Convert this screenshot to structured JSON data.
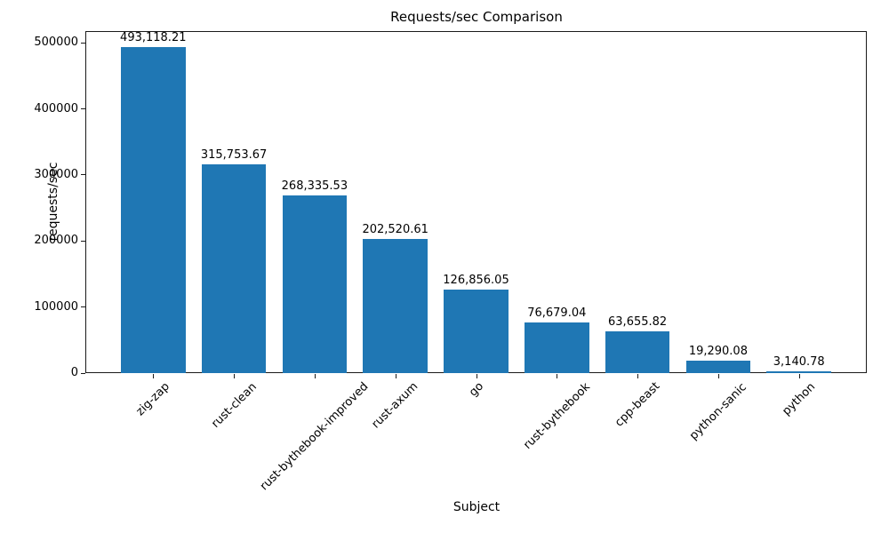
{
  "chart_data": {
    "type": "bar",
    "title": "Requests/sec Comparison",
    "xlabel": "Subject",
    "ylabel": "requests/sec",
    "categories": [
      "zig-zap",
      "rust-clean",
      "rust-bythebook-improved",
      "rust-axum",
      "go",
      "rust-bythebook",
      "cpp-beast",
      "python-sanic",
      "python"
    ],
    "values": [
      493118.21,
      315753.67,
      268335.53,
      202520.61,
      126856.05,
      76679.04,
      63655.82,
      19290.08,
      3140.78
    ],
    "value_labels": [
      "493,118.21",
      "315,753.67",
      "268,335.53",
      "202,520.61",
      "126,856.05",
      "76,679.04",
      "63,655.82",
      "19,290.08",
      "3,140.78"
    ],
    "yticks": [
      0,
      100000,
      200000,
      300000,
      400000,
      500000
    ],
    "ytick_labels": [
      "0",
      "100000",
      "200000",
      "300000",
      "400000",
      "500000"
    ],
    "ylim": [
      0,
      517774
    ],
    "bar_color": "#1f77b4",
    "grid": false,
    "legend_position": "none"
  }
}
